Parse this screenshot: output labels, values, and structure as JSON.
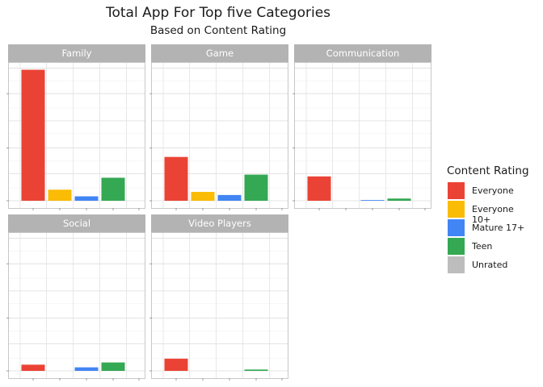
{
  "title": "Total App For Top five Categories",
  "subtitle": "Based on Content Rating",
  "legend_title": "Content Rating",
  "ratings": [
    "Everyone",
    "Everyone 10+",
    "Mature 17+",
    "Teen",
    "Unrated"
  ],
  "colors": {
    "Everyone": "#ea4335",
    "Everyone 10+": "#fbbc05",
    "Mature 17+": "#4285f4",
    "Teen": "#34a853",
    "Unrated": "#bdbdbd"
  },
  "chart_data": {
    "type": "bar",
    "facets": [
      "Family",
      "Game",
      "Communication",
      "Social",
      "Video Players"
    ],
    "categories": [
      "Everyone",
      "Everyone 10+",
      "Mature 17+",
      "Teen",
      "Unrated"
    ],
    "series": [
      {
        "name": "Everyone",
        "values": [
          1480,
          495,
          275,
          70,
          138
        ]
      },
      {
        "name": "Everyone 10+",
        "values": [
          125,
          100,
          0,
          0,
          0
        ]
      },
      {
        "name": "Mature 17+",
        "values": [
          50,
          65,
          8,
          40,
          0
        ]
      },
      {
        "name": "Teen",
        "values": [
          260,
          295,
          25,
          95,
          15
        ]
      },
      {
        "name": "Unrated",
        "values": [
          0,
          0,
          0,
          0,
          0
        ]
      }
    ],
    "ylim": [
      0,
      1530
    ],
    "grid": true,
    "legend_position": "right"
  }
}
